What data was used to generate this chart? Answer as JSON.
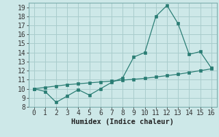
{
  "title": "",
  "xlabel": "Humidex (Indice chaleur)",
  "x": [
    0,
    1,
    2,
    3,
    4,
    5,
    6,
    7,
    8,
    9,
    10,
    11,
    12,
    13,
    14,
    15,
    16
  ],
  "line1": [
    10.0,
    9.7,
    8.5,
    9.2,
    9.9,
    9.3,
    10.0,
    10.7,
    11.2,
    13.5,
    14.0,
    18.0,
    19.2,
    17.2,
    13.8,
    14.1,
    12.3
  ],
  "line2": [
    10.0,
    10.15,
    10.3,
    10.45,
    10.55,
    10.65,
    10.75,
    10.85,
    10.95,
    11.05,
    11.15,
    11.3,
    11.45,
    11.6,
    11.8,
    12.0,
    12.2
  ],
  "line_color": "#2a7d74",
  "bg_color": "#cde8e8",
  "grid_color": "#a8cccc",
  "ylim": [
    8,
    19.5
  ],
  "yticks": [
    8,
    9,
    10,
    11,
    12,
    13,
    14,
    15,
    16,
    17,
    18,
    19
  ],
  "xlim": [
    -0.5,
    16.5
  ],
  "xticks": [
    0,
    1,
    2,
    3,
    4,
    5,
    6,
    7,
    8,
    9,
    10,
    11,
    12,
    13,
    14,
    15,
    16
  ],
  "tick_fontsize": 7,
  "xlabel_fontsize": 7.5
}
